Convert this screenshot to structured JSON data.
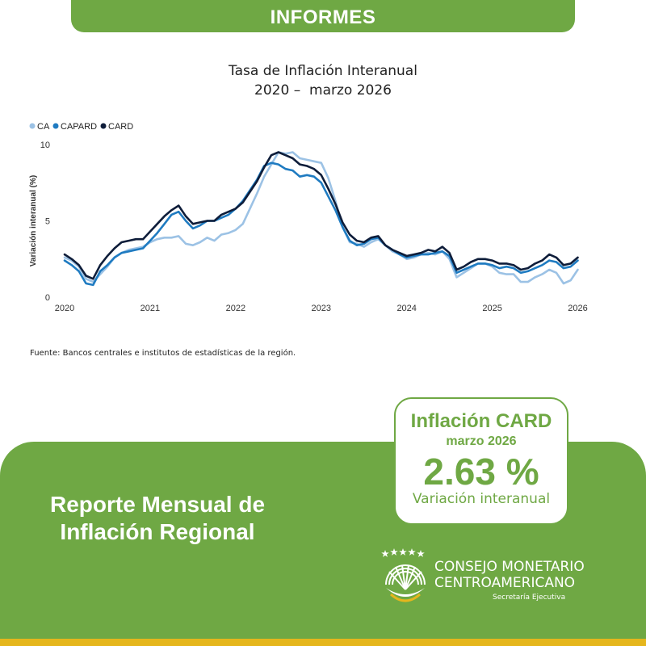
{
  "banner": {
    "title": "INFORMES"
  },
  "chart_data": {
    "type": "line",
    "title": "Tasa de Inflación Interanual",
    "subtitle": "2020 –  marzo 2026",
    "xlabel": "",
    "ylabel": "Variación interanual (%)",
    "ylim": [
      0,
      10
    ],
    "yticks": [
      0,
      5,
      10
    ],
    "xticks": [
      "2020",
      "2021",
      "2022",
      "2023",
      "2024",
      "2025",
      "2026"
    ],
    "legend_position": "top-left",
    "x_start": 2020.0,
    "x_step": 0.0833333,
    "series": [
      {
        "name": "CA",
        "color": "#9cc2e5",
        "values": [
          2.6,
          2.4,
          2.0,
          1.2,
          1.0,
          1.5,
          2.0,
          2.6,
          2.9,
          3.1,
          3.2,
          3.3,
          3.6,
          3.8,
          3.9,
          3.9,
          4.0,
          3.5,
          3.4,
          3.6,
          3.9,
          3.7,
          4.1,
          4.2,
          4.4,
          4.8,
          5.8,
          6.8,
          7.9,
          8.7,
          9.5,
          9.4,
          9.5,
          9.1,
          9.0,
          8.9,
          8.8,
          7.8,
          6.3,
          4.6,
          3.6,
          3.5,
          3.3,
          3.6,
          3.8,
          3.4,
          3.0,
          2.8,
          2.5,
          2.6,
          2.8,
          2.9,
          2.8,
          3.0,
          2.5,
          1.3,
          1.6,
          1.9,
          2.2,
          2.2,
          2.0,
          1.6,
          1.5,
          1.5,
          1.0,
          1.0,
          1.3,
          1.5,
          1.8,
          1.6,
          0.9,
          1.1,
          1.8
        ]
      },
      {
        "name": "CAPARD",
        "color": "#1f7bc1",
        "values": [
          2.4,
          2.1,
          1.7,
          0.9,
          0.8,
          1.7,
          2.1,
          2.6,
          2.9,
          3.0,
          3.1,
          3.2,
          3.7,
          4.2,
          4.8,
          5.4,
          5.6,
          5.0,
          4.5,
          4.7,
          5.0,
          5.0,
          5.2,
          5.4,
          5.8,
          6.3,
          7.0,
          7.7,
          8.6,
          8.8,
          8.7,
          8.4,
          8.3,
          7.9,
          8.0,
          7.9,
          7.5,
          6.6,
          5.7,
          4.6,
          3.7,
          3.4,
          3.5,
          3.8,
          3.9,
          3.4,
          3.1,
          2.8,
          2.6,
          2.7,
          2.8,
          2.8,
          2.9,
          3.0,
          2.7,
          1.6,
          1.8,
          2.0,
          2.2,
          2.2,
          2.1,
          1.9,
          2.0,
          1.9,
          1.6,
          1.7,
          1.9,
          2.1,
          2.4,
          2.3,
          1.9,
          2.0,
          2.4
        ]
      },
      {
        "name": "CARD",
        "color": "#0e1d3a",
        "values": [
          2.8,
          2.5,
          2.1,
          1.4,
          1.2,
          2.1,
          2.7,
          3.2,
          3.6,
          3.7,
          3.8,
          3.8,
          4.3,
          4.8,
          5.3,
          5.7,
          6.0,
          5.3,
          4.8,
          4.9,
          5.0,
          5.0,
          5.4,
          5.6,
          5.8,
          6.2,
          6.9,
          7.6,
          8.5,
          9.3,
          9.5,
          9.3,
          9.1,
          8.7,
          8.6,
          8.4,
          8.0,
          7.1,
          6.1,
          4.9,
          4.1,
          3.7,
          3.6,
          3.9,
          4.0,
          3.4,
          3.1,
          2.9,
          2.7,
          2.8,
          2.9,
          3.1,
          3.0,
          3.3,
          2.9,
          1.8,
          2.0,
          2.3,
          2.5,
          2.5,
          2.4,
          2.2,
          2.2,
          2.1,
          1.8,
          1.9,
          2.2,
          2.4,
          2.8,
          2.6,
          2.1,
          2.2,
          2.6
        ]
      }
    ]
  },
  "source": "Fuente: Bancos centrales e institutos de estadísticas de la región.",
  "report": {
    "line1": "Reporte Mensual de",
    "line2": "Inflación Regional"
  },
  "card": {
    "heading": "Inflación CARD",
    "month": "marzo 2026",
    "value": "2.63 %",
    "label": "Variación interanual"
  },
  "logo": {
    "line1": "CONSEJO MONETARIO",
    "line2": "CENTROAMERICANO",
    "line3": "Secretaría Ejecutiva"
  },
  "colors": {
    "green": "#6fa844",
    "gold": "#e5b61d"
  }
}
